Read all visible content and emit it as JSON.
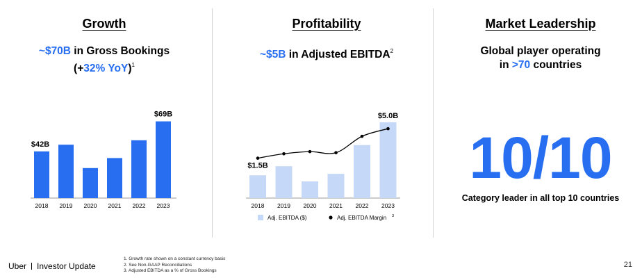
{
  "growth": {
    "title": "Growth",
    "sub_accent": "~$70B",
    "sub_text": " in Gross Bookings",
    "sub2_open": "(+",
    "sub2_accent": "32% YoY",
    "sub2_close": ")",
    "sub2_sup": "1"
  },
  "profitability": {
    "title": "Profitability",
    "sub_accent": "~$5B",
    "sub_text": " in Adjusted EBITDA",
    "sub_sup": "2",
    "legend_bar": "Adj. EBITDA ($)",
    "legend_line": "Adj. EBITDA Margin",
    "legend_line_sup": "3"
  },
  "market": {
    "title": "Market Leadership",
    "line1": "Global player operating",
    "line2_pre": "in ",
    "line2_accent": ">70",
    "line2_post": " countries",
    "big_number": "10/10",
    "caption": "Category leader in all top 10 countries"
  },
  "footer": {
    "brand": "Uber",
    "section": "Investor Update",
    "footnotes": [
      "1. Growth rate shown on a constant currency basis",
      "2. See Non-GAAP Reconciliations",
      "3. Adjusted EBITDA as a % of Gross Bookings"
    ],
    "page": "21"
  },
  "colors": {
    "accent": "#276ef1",
    "bar_light": "#c6d8f7",
    "line": "#000000"
  },
  "chart_data": [
    {
      "type": "bar",
      "title": "",
      "categories": [
        "2018",
        "2019",
        "2020",
        "2021",
        "2022",
        "2023"
      ],
      "values": [
        42,
        48,
        27,
        36,
        52,
        69
      ],
      "data_labels": [
        "$42B",
        "",
        "",
        "",
        "",
        "$69B"
      ],
      "ylim": [
        0,
        75
      ],
      "grid": false
    },
    {
      "type": "bar",
      "title": "",
      "categories": [
        "2018",
        "2019",
        "2020",
        "2021",
        "2022",
        "2023"
      ],
      "series": [
        {
          "name": "Adj. EBITDA ($)",
          "type": "bar",
          "values": [
            1.5,
            2.1,
            1.1,
            1.6,
            3.5,
            5.0
          ]
        },
        {
          "name": "Adj. EBITDA Margin",
          "type": "line",
          "values": [
            8.7,
            9.1,
            9.3,
            9.2,
            10.7,
            11.4
          ]
        }
      ],
      "data_labels": [
        "$1.5B",
        "",
        "",
        "",
        "",
        "$5.0B"
      ],
      "ylim": [
        0,
        5.5
      ],
      "line_ylim": [
        6,
        13
      ],
      "legend": "bottom",
      "grid": false
    }
  ]
}
